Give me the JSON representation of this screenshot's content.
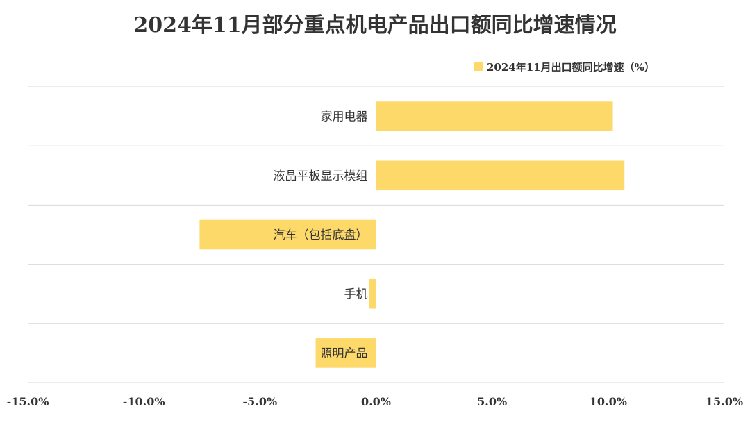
{
  "chart_data": {
    "type": "bar",
    "orientation": "horizontal",
    "title": "2024年11月部分重点机电产品出口额同比增速情况",
    "categories": [
      "家用电器",
      "液晶平板显示模组",
      "汽车（包括底盘）",
      "手机",
      "照明产品"
    ],
    "series": [
      {
        "name": "2024年11月出口额同比增速（%）",
        "values": [
          10.2,
          10.7,
          -7.6,
          -0.3,
          -2.6
        ],
        "color": "#fdd96a"
      }
    ],
    "xlim": [
      -15,
      15
    ],
    "xticks": [
      "-15.0%",
      "-10.0%",
      "-5.0%",
      "0.0%",
      "5.0%",
      "10.0%",
      "15.0%"
    ],
    "xtick_values": [
      -15,
      -10,
      -5,
      0,
      5,
      10,
      15
    ],
    "grid": "horizontal category separators",
    "legend": "top-right"
  }
}
